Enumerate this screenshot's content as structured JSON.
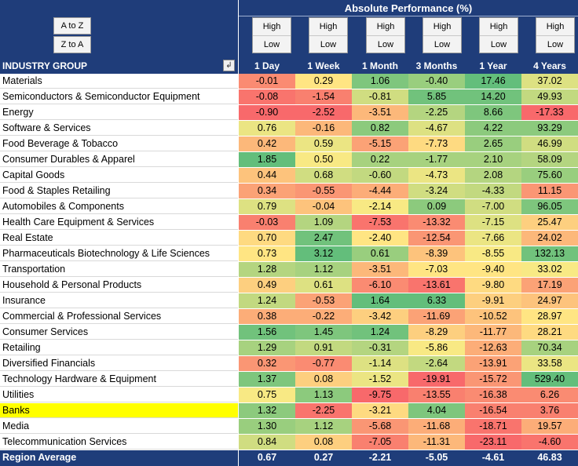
{
  "sort_buttons": {
    "a_to_z": "A to Z",
    "z_to_a": "Z to A"
  },
  "header": {
    "performance_title": "Absolute Performance (%)",
    "group_col": "INDUSTRY GROUP",
    "filter_icon": "filter-sort-icon"
  },
  "sort_toggle": {
    "high": "High",
    "low": "Low"
  },
  "columns": [
    "1 Day",
    "1 Week",
    "1 Month",
    "3 Months",
    "1 Year",
    "4 Years"
  ],
  "highlight_color": "#ffff00",
  "rows": [
    {
      "name": "Materials",
      "values": [
        "-0.01",
        "0.29",
        "1.06",
        "-0.40",
        "17.46",
        "37.02"
      ]
    },
    {
      "name": "Semiconductors & Semiconductor Equipment",
      "values": [
        "-0.08",
        "-1.54",
        "-0.81",
        "5.85",
        "14.20",
        "49.93"
      ]
    },
    {
      "name": "Energy",
      "values": [
        "-0.90",
        "-2.52",
        "-3.51",
        "-2.25",
        "8.66",
        "-17.33"
      ]
    },
    {
      "name": "Software & Services",
      "values": [
        "0.76",
        "-0.16",
        "0.82",
        "-4.67",
        "4.22",
        "93.29"
      ]
    },
    {
      "name": "Food Beverage & Tobacco",
      "values": [
        "0.42",
        "0.59",
        "-5.15",
        "-7.73",
        "2.65",
        "46.99"
      ]
    },
    {
      "name": "Consumer Durables & Apparel",
      "values": [
        "1.85",
        "0.50",
        "0.22",
        "-1.77",
        "2.10",
        "58.09"
      ]
    },
    {
      "name": "Capital Goods",
      "values": [
        "0.44",
        "0.68",
        "-0.60",
        "-4.73",
        "2.08",
        "75.60"
      ]
    },
    {
      "name": "Food & Staples Retailing",
      "values": [
        "0.34",
        "-0.55",
        "-4.44",
        "-3.24",
        "-4.33",
        "11.15"
      ]
    },
    {
      "name": "Automobiles & Components",
      "values": [
        "0.79",
        "-0.04",
        "-2.14",
        "0.09",
        "-7.00",
        "96.05"
      ]
    },
    {
      "name": "Health Care Equipment & Services",
      "values": [
        "-0.03",
        "1.09",
        "-7.53",
        "-13.32",
        "-7.15",
        "25.47"
      ]
    },
    {
      "name": "Real Estate",
      "values": [
        "0.70",
        "2.47",
        "-2.40",
        "-12.54",
        "-7.66",
        "24.02"
      ]
    },
    {
      "name": "Pharmaceuticals Biotechnology & Life Sciences",
      "values": [
        "0.73",
        "3.12",
        "0.61",
        "-8.39",
        "-8.55",
        "132.13"
      ]
    },
    {
      "name": "Transportation",
      "values": [
        "1.28",
        "1.12",
        "-3.51",
        "-7.03",
        "-9.40",
        "33.02"
      ]
    },
    {
      "name": "Household & Personal Products",
      "values": [
        "0.49",
        "0.61",
        "-6.10",
        "-13.61",
        "-9.80",
        "17.19"
      ]
    },
    {
      "name": "Insurance",
      "values": [
        "1.24",
        "-0.53",
        "1.64",
        "6.33",
        "-9.91",
        "24.97"
      ]
    },
    {
      "name": "Commercial & Professional Services",
      "values": [
        "0.38",
        "-0.22",
        "-3.42",
        "-11.69",
        "-10.52",
        "28.97"
      ]
    },
    {
      "name": "Consumer Services",
      "values": [
        "1.56",
        "1.45",
        "1.24",
        "-8.29",
        "-11.77",
        "28.21"
      ]
    },
    {
      "name": "Retailing",
      "values": [
        "1.29",
        "0.91",
        "-0.31",
        "-5.86",
        "-12.63",
        "70.34"
      ]
    },
    {
      "name": "Diversified Financials",
      "values": [
        "0.32",
        "-0.77",
        "-1.14",
        "-2.64",
        "-13.91",
        "33.58"
      ]
    },
    {
      "name": "Technology Hardware & Equipment",
      "values": [
        "1.37",
        "0.08",
        "-1.52",
        "-19.91",
        "-15.72",
        "529.40"
      ]
    },
    {
      "name": "Utilities",
      "values": [
        "0.75",
        "1.13",
        "-9.75",
        "-13.55",
        "-16.38",
        "6.26"
      ]
    },
    {
      "name": "Banks",
      "values": [
        "1.32",
        "-2.25",
        "-3.21",
        "4.04",
        "-16.54",
        "3.76"
      ],
      "highlighted": true
    },
    {
      "name": "Media",
      "values": [
        "1.30",
        "1.12",
        "-5.68",
        "-11.68",
        "-18.71",
        "19.57"
      ]
    },
    {
      "name": "Telecommunication Services",
      "values": [
        "0.84",
        "0.08",
        "-7.05",
        "-11.31",
        "-23.11",
        "-4.60"
      ]
    }
  ],
  "footer": {
    "name": "Region Average",
    "values": [
      "0.67",
      "0.27",
      "-2.21",
      "-5.05",
      "-4.61",
      "46.83"
    ]
  }
}
